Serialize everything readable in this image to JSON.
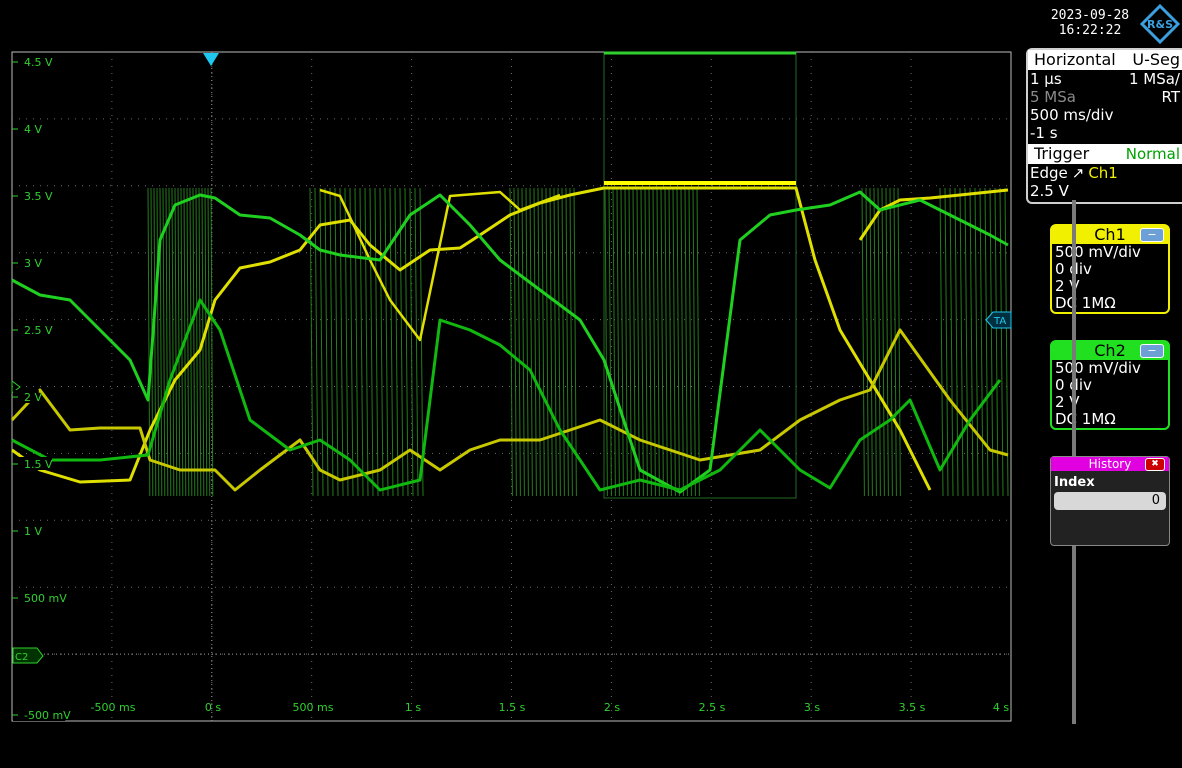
{
  "status": {
    "date": "2023-09-28",
    "time": "16:22:22"
  },
  "logo_text": "R&S",
  "horizontal": {
    "title": "Horizontal",
    "mode": "U-Seg",
    "resolution": "1 µs",
    "sample_rate": "1 MSa/",
    "record_length": "5 MSa",
    "acq_mode": "RT",
    "time_scale": "500 ms/div",
    "position": "-1 s"
  },
  "trigger": {
    "title": "Trigger",
    "mode": "Normal",
    "type": "Edge",
    "source": "Ch1",
    "level": "2.5 V"
  },
  "channels": [
    {
      "name": "Ch1",
      "color": "#f0f000",
      "scale": "500 mV/div",
      "offset": "0 div",
      "position": "2 V",
      "coupling": "DC 1MΩ"
    },
    {
      "name": "Ch2",
      "color": "#20e020",
      "scale": "500 mV/div",
      "offset": "0 div",
      "position": "2 V",
      "coupling": "DC 1MΩ"
    }
  ],
  "history": {
    "title": "History",
    "index_label": "Index",
    "index_value": "0"
  },
  "y_labels": [
    "4.5 V",
    "4 V",
    "3.5 V",
    "3 V",
    "2.5 V",
    "2 V",
    "1.5 V",
    "1 V",
    "500 mV",
    "-500 mV"
  ],
  "x_labels": [
    "-500 ms",
    "0 s",
    "500 ms",
    "1 s",
    "1.5 s",
    "2 s",
    "2.5 s",
    "3 s",
    "3.5 s",
    "4 s"
  ],
  "markers": {
    "trigger_level": "TA",
    "ch2_ground": "C2"
  }
}
